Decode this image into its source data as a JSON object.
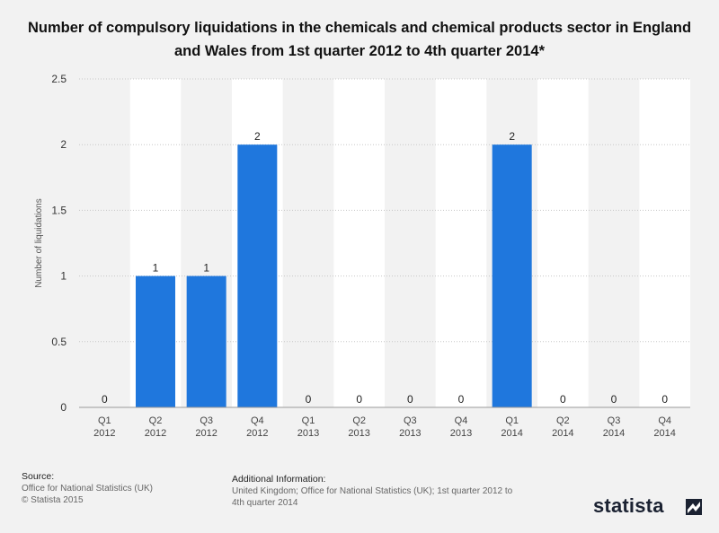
{
  "title": "Number of compulsory liquidations in the chemicals and chemical products sector in England and Wales from 1st quarter 2012 to 4th quarter 2014*",
  "footer": {
    "source_heading": "Source:",
    "source_lines": [
      "Office for National Statistics (UK)",
      "© Statista 2015"
    ],
    "additional_heading": "Additional Information:",
    "additional_text": "United Kingdom; Office for National Statistics (UK); 1st quarter 2012 to 4th quarter 2014"
  },
  "logo": {
    "text": "statista",
    "icon": "statista-flag-icon"
  },
  "colors": {
    "bar": "#1f77dd",
    "background": "#f2f2f2",
    "band": "#ffffff",
    "grid": "#c8c8c8"
  },
  "chart_data": {
    "type": "bar",
    "categories": [
      [
        "Q1",
        "2012"
      ],
      [
        "Q2",
        "2012"
      ],
      [
        "Q3",
        "2012"
      ],
      [
        "Q4",
        "2012"
      ],
      [
        "Q1",
        "2013"
      ],
      [
        "Q2",
        "2013"
      ],
      [
        "Q3",
        "2013"
      ],
      [
        "Q4",
        "2013"
      ],
      [
        "Q1",
        "2014"
      ],
      [
        "Q2",
        "2014"
      ],
      [
        "Q3",
        "2014"
      ],
      [
        "Q4",
        "2014"
      ]
    ],
    "values": [
      0,
      1,
      1,
      2,
      0,
      0,
      0,
      0,
      2,
      0,
      0,
      0
    ],
    "data_labels": [
      "0",
      "1",
      "1",
      "2",
      "0",
      "0",
      "0",
      "0",
      "2",
      "0",
      "0",
      "0"
    ],
    "ylabel": "Number of liquidations",
    "xlabel": "",
    "ylim": [
      0,
      2.5
    ],
    "yticks": [
      0,
      0.5,
      1,
      1.5,
      2,
      2.5
    ],
    "ytick_labels": [
      "0",
      "0.5",
      "1",
      "1.5",
      "2",
      "2.5"
    ],
    "grid": true,
    "legend": "none"
  }
}
